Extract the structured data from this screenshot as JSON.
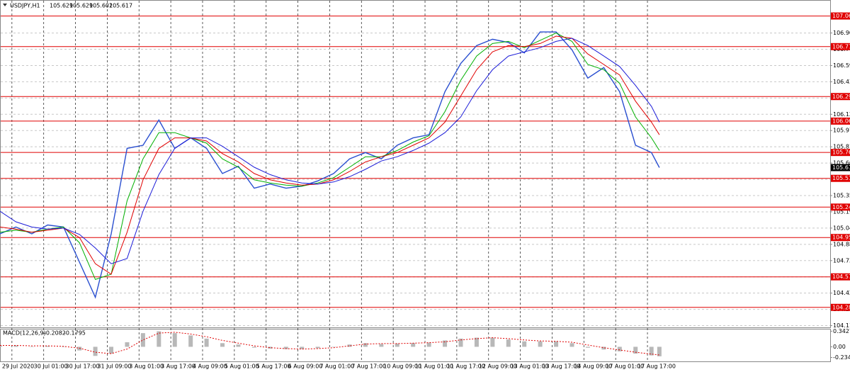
{
  "header": {
    "symbol": "USDJPY,H1",
    "ohlc": [
      105.629,
      105.629,
      105.602,
      105.617
    ]
  },
  "chart_data": [
    {
      "type": "line",
      "x": [
        0,
        8,
        16,
        24,
        32,
        40,
        48,
        56,
        64,
        72,
        80,
        88,
        96,
        104,
        112,
        120,
        128,
        136,
        144,
        152,
        160,
        168,
        176,
        184,
        192,
        200,
        208,
        216,
        224,
        232,
        240,
        248,
        256,
        264,
        272,
        280,
        288,
        296,
        304,
        312,
        320,
        328,
        332
      ],
      "series": [
        {
          "color": "#2a4fd0",
          "values": [
            104.985,
            105.05,
            104.985,
            105.07,
            105.05,
            104.715,
            104.38,
            104.985,
            105.8,
            105.83,
            106.07,
            105.8,
            105.9,
            105.8,
            105.56,
            105.63,
            105.42,
            105.46,
            105.42,
            105.44,
            105.49,
            105.56,
            105.7,
            105.76,
            105.7,
            105.83,
            105.9,
            105.93,
            106.34,
            106.61,
            106.78,
            106.84,
            106.81,
            106.71,
            106.91,
            106.91,
            106.74,
            106.47,
            106.57,
            106.34,
            105.83,
            105.76,
            105.617
          ]
        },
        {
          "color": "#00b000",
          "values": [
            105.0,
            105.02,
            105.0,
            105.03,
            105.05,
            104.9,
            104.55,
            104.6,
            105.3,
            105.7,
            105.95,
            105.95,
            105.9,
            105.85,
            105.7,
            105.62,
            105.5,
            105.47,
            105.45,
            105.44,
            105.47,
            105.52,
            105.62,
            105.72,
            105.72,
            105.78,
            105.86,
            105.92,
            106.15,
            106.45,
            106.68,
            106.8,
            106.82,
            106.76,
            106.83,
            106.9,
            106.82,
            106.6,
            106.55,
            106.42,
            106.1,
            105.9,
            105.78
          ]
        },
        {
          "color": "#e00000",
          "values": [
            105.05,
            105.03,
            105.0,
            105.02,
            105.04,
            104.95,
            104.7,
            104.6,
            105.0,
            105.5,
            105.8,
            105.9,
            105.9,
            105.87,
            105.75,
            105.67,
            105.56,
            105.5,
            105.47,
            105.45,
            105.46,
            105.5,
            105.58,
            105.67,
            105.72,
            105.76,
            105.83,
            105.9,
            106.05,
            106.3,
            106.55,
            106.72,
            106.78,
            106.77,
            106.8,
            106.87,
            106.85,
            106.7,
            106.6,
            106.5,
            106.25,
            106.05,
            105.93
          ]
        },
        {
          "color": "#1c1cd8",
          "values": [
            105.2,
            105.1,
            105.05,
            105.03,
            105.04,
            104.98,
            104.85,
            104.7,
            104.75,
            105.2,
            105.55,
            105.8,
            105.9,
            105.9,
            105.82,
            105.72,
            105.62,
            105.55,
            105.5,
            105.47,
            105.46,
            105.48,
            105.53,
            105.6,
            105.68,
            105.72,
            105.78,
            105.85,
            105.95,
            106.1,
            106.35,
            106.55,
            106.68,
            106.72,
            106.76,
            106.82,
            106.85,
            106.78,
            106.68,
            106.58,
            106.4,
            106.2,
            106.05
          ]
        }
      ],
      "xlim": [
        0,
        418
      ],
      "xticks": [
        {
          "value": 6,
          "label": "29 Jul 2020"
        },
        {
          "value": 22,
          "label": "30 Jul 01:00"
        },
        {
          "value": 38,
          "label": "30 Jul 17:00"
        },
        {
          "value": 54,
          "label": "31 Jul 09:00"
        },
        {
          "value": 70,
          "label": "3 Aug 01:00"
        },
        {
          "value": 86,
          "label": "3 Aug 17:00"
        },
        {
          "value": 102,
          "label": "4 Aug 09:00"
        },
        {
          "value": 118,
          "label": "5 Aug 01:00"
        },
        {
          "value": 134,
          "label": "5 Aug 17:00"
        },
        {
          "value": 150,
          "label": "6 Aug 09:00"
        },
        {
          "value": 166,
          "label": "7 Aug 01:00"
        },
        {
          "value": 182,
          "label": "7 Aug 17:00"
        },
        {
          "value": 198,
          "label": "10 Aug 09:00"
        },
        {
          "value": 214,
          "label": "11 Aug 01:00"
        },
        {
          "value": 230,
          "label": "11 Aug 17:00"
        },
        {
          "value": 246,
          "label": "12 Aug 09:00"
        },
        {
          "value": 262,
          "label": "13 Aug 01:00"
        },
        {
          "value": 278,
          "label": "13 Aug 17:00"
        },
        {
          "value": 294,
          "label": "14 Aug 09:00"
        },
        {
          "value": 310,
          "label": "17 Aug 01:00"
        },
        {
          "value": 326,
          "label": "17 Aug 17:00"
        }
      ],
      "ylim": [
        104.08,
        107.12
      ],
      "yticks": [
        {
          "value": 106.9,
          "label": "106.900"
        },
        {
          "value": 106.745,
          "label": "106.745"
        },
        {
          "value": 106.59,
          "label": "106.590"
        },
        106.435,
        {
          "value": 106.28,
          "label": "106.280"
        },
        106.125,
        {
          "value": 105.97,
          "label": "105.970"
        },
        105.815,
        {
          "value": 105.66,
          "label": "105.660"
        },
        105.505,
        {
          "value": 105.35,
          "label": "105.350"
        },
        105.195,
        {
          "value": 105.04,
          "label": "105.040"
        },
        104.885,
        {
          "value": 104.73,
          "label": "104.730"
        },
        104.575,
        {
          "value": 104.42,
          "label": "104.420"
        },
        104.265,
        {
          "value": 104.11,
          "label": "104.110"
        }
      ],
      "levels": [
        107.062,
        {
          "value": 106.77,
          "label": "106.770"
        },
        106.294,
        {
          "value": 106.06,
          "label": "106.060"
        },
        105.761,
        105.514,
        {
          "value": 105.24,
          "label": "105.240"
        },
        {
          "value": 104.95,
          "label": "104.950"
        },
        104.575,
        104.284
      ],
      "level_color": "#e00000",
      "current": 105.617,
      "grid": true
    },
    {
      "type": "bar",
      "title": "MACD(12,26,9)",
      "series": [
        {
          "type": "bar",
          "color": "#b8b8b8",
          "values": [
            0.02,
            0.03,
            0.0,
            0.02,
            0.0,
            -0.08,
            -0.2,
            -0.15,
            0.1,
            0.3,
            0.34,
            0.3,
            0.25,
            0.18,
            0.08,
            0.05,
            -0.02,
            -0.04,
            -0.05,
            -0.05,
            -0.03,
            0.0,
            0.05,
            0.08,
            0.06,
            0.07,
            0.08,
            0.09,
            0.14,
            0.18,
            0.2,
            0.2,
            0.16,
            0.12,
            0.12,
            0.12,
            0.08,
            -0.02,
            -0.06,
            -0.1,
            -0.15,
            -0.19,
            -0.2082
          ]
        },
        {
          "type": "line",
          "color": "#e00000",
          "values": [
            0.03,
            0.03,
            0.02,
            0.02,
            0.01,
            -0.03,
            -0.12,
            -0.15,
            -0.05,
            0.15,
            0.3,
            0.32,
            0.28,
            0.22,
            0.14,
            0.08,
            0.02,
            -0.02,
            -0.04,
            -0.05,
            -0.04,
            -0.02,
            0.02,
            0.06,
            0.07,
            0.07,
            0.08,
            0.09,
            0.11,
            0.15,
            0.18,
            0.2,
            0.18,
            0.15,
            0.13,
            0.12,
            0.1,
            0.04,
            -0.02,
            -0.07,
            -0.12,
            -0.16,
            -0.1795
          ]
        }
      ],
      "ylim": [
        -0.32,
        0.38
      ],
      "yticks": [
        0.3427,
        {
          "value": 0,
          "label": "0.00"
        },
        -0.2345
      ]
    }
  ]
}
